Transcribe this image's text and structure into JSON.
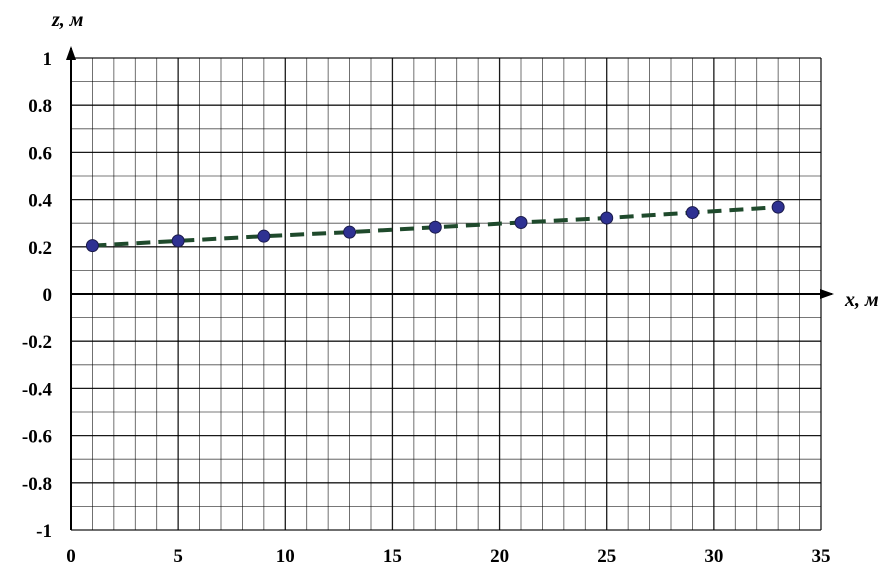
{
  "chart_data": {
    "type": "scatter",
    "xlabel": "x, м",
    "ylabel": "z, м",
    "xlim": [
      0,
      35
    ],
    "ylim": [
      -1,
      1
    ],
    "x_ticks": [
      0,
      5,
      10,
      15,
      20,
      25,
      30,
      35
    ],
    "y_ticks": [
      -1,
      -0.8,
      -0.6,
      -0.4,
      -0.2,
      0,
      0.2,
      0.4,
      0.6,
      0.8,
      1
    ],
    "grid": true,
    "series": [
      {
        "marker": "circle",
        "line": "dashed",
        "marker_color": "#2e3192",
        "line_color": "#1f4a2c",
        "x": [
          1,
          5,
          9,
          13,
          17,
          21,
          25,
          29,
          33
        ],
        "y": [
          0.205,
          0.225,
          0.245,
          0.262,
          0.283,
          0.303,
          0.322,
          0.345,
          0.368
        ]
      }
    ]
  }
}
